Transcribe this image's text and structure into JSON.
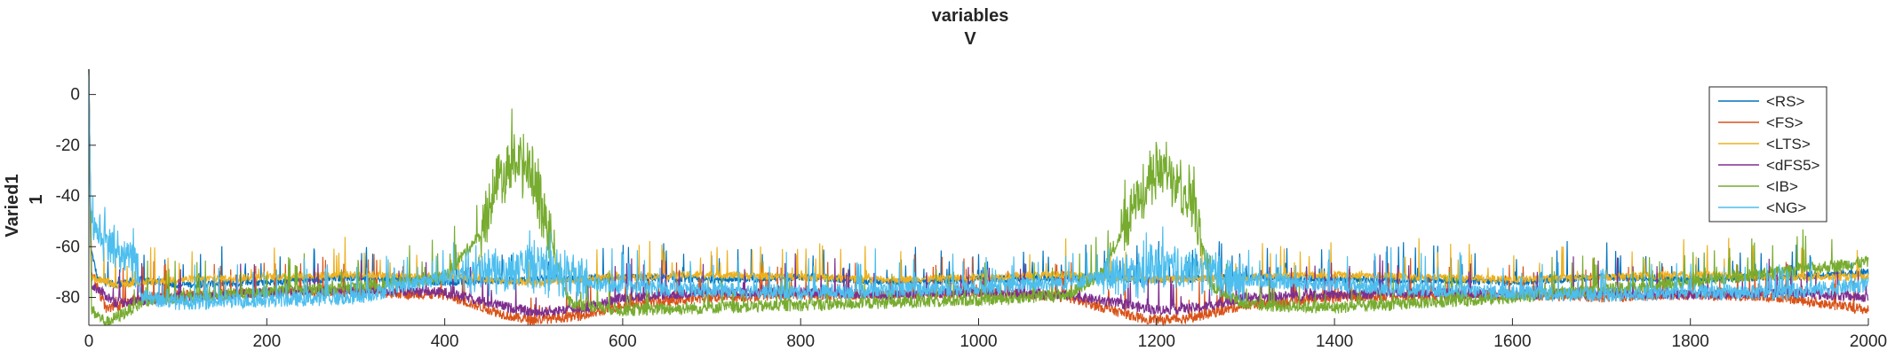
{
  "chart_data": {
    "type": "line",
    "title": "variables",
    "subtitle": "V",
    "xlabel": "",
    "ylabel": "Varied1",
    "ylabel_value": "1",
    "xlim": [
      0,
      2000
    ],
    "ylim": [
      -91,
      10
    ],
    "xticks": [
      0,
      200,
      400,
      600,
      800,
      1000,
      1200,
      1400,
      1600,
      1800,
      2000
    ],
    "yticks": [
      0,
      -20,
      -40,
      -60,
      -80
    ],
    "grid": false,
    "legend_position": "top-right",
    "series": [
      {
        "name": "<RS>",
        "color": "#0072BD",
        "values": [
          [
            0,
            10
          ],
          [
            2,
            -60
          ],
          [
            10,
            -73
          ],
          [
            30,
            -75
          ],
          [
            60,
            -73
          ],
          [
            100,
            -75
          ],
          [
            200,
            -74
          ],
          [
            300,
            -72
          ],
          [
            400,
            -74
          ],
          [
            500,
            -73
          ],
          [
            600,
            -72
          ],
          [
            700,
            -73
          ],
          [
            800,
            -72
          ],
          [
            900,
            -74
          ],
          [
            1000,
            -73
          ],
          [
            1100,
            -72
          ],
          [
            1200,
            -73
          ],
          [
            1300,
            -72
          ],
          [
            1400,
            -73
          ],
          [
            1500,
            -73
          ],
          [
            1600,
            -74
          ],
          [
            1700,
            -72
          ],
          [
            1800,
            -73
          ],
          [
            1900,
            -72
          ],
          [
            2000,
            -70
          ]
        ]
      },
      {
        "name": "<FS>",
        "color": "#D95319",
        "values": [
          [
            0,
            10
          ],
          [
            3,
            -70
          ],
          [
            20,
            -85
          ],
          [
            60,
            -80
          ],
          [
            120,
            -79
          ],
          [
            200,
            -78
          ],
          [
            300,
            -78
          ],
          [
            400,
            -79
          ],
          [
            460,
            -86
          ],
          [
            480,
            -88
          ],
          [
            500,
            -89
          ],
          [
            560,
            -87
          ],
          [
            600,
            -83
          ],
          [
            700,
            -80
          ],
          [
            800,
            -79
          ],
          [
            900,
            -79
          ],
          [
            1000,
            -78
          ],
          [
            1100,
            -80
          ],
          [
            1180,
            -88
          ],
          [
            1200,
            -89
          ],
          [
            1240,
            -88
          ],
          [
            1300,
            -83
          ],
          [
            1400,
            -80
          ],
          [
            1500,
            -79
          ],
          [
            1600,
            -79
          ],
          [
            1700,
            -80
          ],
          [
            1800,
            -79
          ],
          [
            1900,
            -80
          ],
          [
            2000,
            -85
          ]
        ]
      },
      {
        "name": "<LTS>",
        "color": "#EDB120",
        "values": [
          [
            0,
            10
          ],
          [
            3,
            -72
          ],
          [
            30,
            -75
          ],
          [
            100,
            -73
          ],
          [
            200,
            -72
          ],
          [
            300,
            -71
          ],
          [
            400,
            -72
          ],
          [
            500,
            -74
          ],
          [
            600,
            -72
          ],
          [
            700,
            -71
          ],
          [
            800,
            -72
          ],
          [
            900,
            -73
          ],
          [
            1000,
            -72
          ],
          [
            1100,
            -71
          ],
          [
            1200,
            -73
          ],
          [
            1300,
            -72
          ],
          [
            1400,
            -71
          ],
          [
            1500,
            -72
          ],
          [
            1600,
            -73
          ],
          [
            1700,
            -72
          ],
          [
            1800,
            -71
          ],
          [
            1900,
            -72
          ],
          [
            2000,
            -72
          ]
        ]
      },
      {
        "name": "<dFS5>",
        "color": "#7E2F8E",
        "values": [
          [
            0,
            10
          ],
          [
            3,
            -75
          ],
          [
            30,
            -82
          ],
          [
            100,
            -80
          ],
          [
            200,
            -78
          ],
          [
            300,
            -77
          ],
          [
            400,
            -78
          ],
          [
            460,
            -83
          ],
          [
            500,
            -86
          ],
          [
            560,
            -84
          ],
          [
            600,
            -80
          ],
          [
            700,
            -78
          ],
          [
            800,
            -78
          ],
          [
            900,
            -79
          ],
          [
            1000,
            -78
          ],
          [
            1100,
            -79
          ],
          [
            1200,
            -85
          ],
          [
            1250,
            -84
          ],
          [
            1300,
            -80
          ],
          [
            1400,
            -79
          ],
          [
            1500,
            -78
          ],
          [
            1600,
            -79
          ],
          [
            1700,
            -78
          ],
          [
            1800,
            -79
          ],
          [
            1900,
            -78
          ],
          [
            2000,
            -80
          ]
        ]
      },
      {
        "name": "<IB>",
        "color": "#77AC30",
        "values": [
          [
            0,
            10
          ],
          [
            3,
            -85
          ],
          [
            20,
            -90
          ],
          [
            60,
            -82
          ],
          [
            100,
            -80
          ],
          [
            200,
            -78
          ],
          [
            300,
            -76
          ],
          [
            400,
            -72
          ],
          [
            440,
            -55
          ],
          [
            460,
            -32
          ],
          [
            480,
            -26
          ],
          [
            500,
            -32
          ],
          [
            520,
            -60
          ],
          [
            540,
            -82
          ],
          [
            600,
            -85
          ],
          [
            700,
            -84
          ],
          [
            800,
            -83
          ],
          [
            900,
            -82
          ],
          [
            1000,
            -81
          ],
          [
            1100,
            -79
          ],
          [
            1140,
            -70
          ],
          [
            1180,
            -40
          ],
          [
            1200,
            -30
          ],
          [
            1220,
            -32
          ],
          [
            1240,
            -40
          ],
          [
            1260,
            -75
          ],
          [
            1300,
            -83
          ],
          [
            1400,
            -84
          ],
          [
            1500,
            -82
          ],
          [
            1600,
            -80
          ],
          [
            1700,
            -77
          ],
          [
            1800,
            -74
          ],
          [
            1900,
            -70
          ],
          [
            2000,
            -66
          ]
        ]
      },
      {
        "name": "<NG>",
        "color": "#4DBEEE",
        "values": [
          [
            0,
            10
          ],
          [
            2,
            -45
          ],
          [
            10,
            -55
          ],
          [
            30,
            -60
          ],
          [
            50,
            -64
          ],
          [
            60,
            -80
          ],
          [
            100,
            -82
          ],
          [
            200,
            -81
          ],
          [
            300,
            -80
          ],
          [
            400,
            -72
          ],
          [
            450,
            -70
          ],
          [
            500,
            -68
          ],
          [
            560,
            -74
          ],
          [
            600,
            -76
          ],
          [
            700,
            -77
          ],
          [
            800,
            -78
          ],
          [
            900,
            -77
          ],
          [
            1000,
            -76
          ],
          [
            1100,
            -74
          ],
          [
            1150,
            -72
          ],
          [
            1200,
            -68
          ],
          [
            1250,
            -70
          ],
          [
            1300,
            -73
          ],
          [
            1400,
            -75
          ],
          [
            1500,
            -77
          ],
          [
            1600,
            -78
          ],
          [
            1700,
            -79
          ],
          [
            1800,
            -78
          ],
          [
            1900,
            -78
          ],
          [
            2000,
            -75
          ]
        ]
      }
    ]
  }
}
